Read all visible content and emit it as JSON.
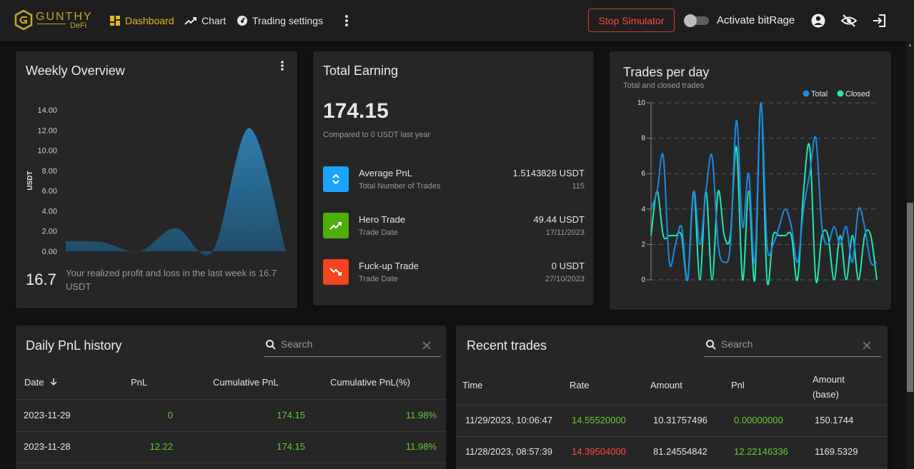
{
  "header": {
    "brand": "GUNTHY",
    "brand_sub": "DeFi",
    "nav": [
      {
        "label": "Dashboard",
        "active": true
      },
      {
        "label": "Chart"
      },
      {
        "label": "Trading settings"
      }
    ],
    "stop_button": "Stop Simulator",
    "toggle_label": "Activate bitRage",
    "toggle_on": false,
    "colors": {
      "accent": "#e6b41f",
      "danger": "#ff4a3d",
      "positive": "#66cc33"
    }
  },
  "weekly": {
    "title": "Weekly Overview",
    "value": "16.7",
    "description": "Your realized profit and loss in the last week is 16.7 USDT"
  },
  "earning": {
    "title": "Total Earning",
    "total": "174.15",
    "compare": "Compared to 0 USDT last year",
    "stats": [
      {
        "name": "Average PnL",
        "sub": "Total Number of Trades",
        "value": "1.5143828 USDT",
        "value2": "115",
        "icon": "chevron-up-down-icon",
        "color": "#1aa3ff"
      },
      {
        "name": "Hero Trade",
        "sub": "Trade Date",
        "value": "49.44 USDT",
        "value2": "17/11/2023",
        "icon": "trending-up-icon",
        "color": "#4caf0c"
      },
      {
        "name": "Fuck-up Trade",
        "sub": "Trade Date",
        "value": "0 USDT",
        "value2": "27/10/2023",
        "icon": "trending-down-icon",
        "color": "#f4431f"
      }
    ]
  },
  "trades_chart": {
    "title": "Trades per day",
    "subtitle": "Total and closed trades"
  },
  "daily_pnl": {
    "title": "Daily PnL history",
    "search_placeholder": "Search",
    "columns": [
      "Date",
      "PnL",
      "Cumulative PnL",
      "Cumulative PnL(%)"
    ],
    "rows": [
      [
        "2023-11-29",
        "0",
        "174.15",
        "11.98%"
      ],
      [
        "2023-11-28",
        "12.22",
        "174.15",
        "11.98%"
      ]
    ]
  },
  "recent_trades": {
    "title": "Recent trades",
    "search_placeholder": "Search",
    "columns": [
      "Time",
      "Rate",
      "Amount",
      "Pnl",
      "Amount",
      "(base)"
    ],
    "rows": [
      {
        "time": "11/29/2023, 10:06:47",
        "rate": "14.55520000",
        "rate_side": "buy",
        "amount": "10.31757496",
        "pnl": "0.00000000",
        "amount_base": "150.1744"
      },
      {
        "time": "11/28/2023, 08:57:39",
        "rate": "14.39504000",
        "rate_side": "sell",
        "amount": "81.24554842",
        "pnl": "12.22146336",
        "amount_base": "1169.5329"
      }
    ]
  },
  "chart_data": [
    {
      "type": "area",
      "title": "",
      "ylabel": "USDT",
      "yticks": [
        "0.00",
        "2.00",
        "4.00",
        "6.00",
        "8.00",
        "10.00",
        "12.00",
        "14.00"
      ],
      "ylim": [
        0,
        14
      ],
      "x": [
        0,
        1,
        2,
        3,
        4,
        5,
        6
      ],
      "values": [
        1.0,
        0.9,
        0.0,
        2.3,
        0.0,
        12.2,
        0.0
      ],
      "colors": [
        "#2b6a8f"
      ]
    },
    {
      "type": "line",
      "title": "Trades per day",
      "subtitle": "Total and closed trades",
      "legend": "top-right",
      "yticks": [
        "0",
        "2",
        "4",
        "6",
        "8",
        "10"
      ],
      "ylim": [
        0,
        10
      ],
      "grid": true,
      "series": [
        {
          "name": "Total",
          "color": "#1e88e5",
          "values": [
            4,
            5,
            7,
            1,
            2,
            3,
            0,
            5,
            2,
            5,
            7,
            2,
            1,
            2,
            9,
            3,
            6,
            1,
            10,
            2,
            2,
            3,
            4,
            3,
            1,
            4,
            6,
            8,
            3,
            2,
            3,
            2,
            3,
            1,
            4,
            3,
            1,
            1
          ]
        },
        {
          "name": "Closed",
          "color": "#1de9b6",
          "values": [
            2.5,
            5,
            2.5,
            2.5,
            2.5,
            2.5,
            0,
            5,
            0,
            5,
            0,
            5,
            2.5,
            2.5,
            7.5,
            0,
            5,
            0,
            10,
            0,
            2.5,
            2.5,
            2.5,
            2.5,
            0,
            5,
            7.5,
            0,
            2.5,
            2.5,
            0,
            2.5,
            0,
            2.5,
            0,
            2.5,
            2.5,
            0
          ]
        }
      ]
    }
  ]
}
